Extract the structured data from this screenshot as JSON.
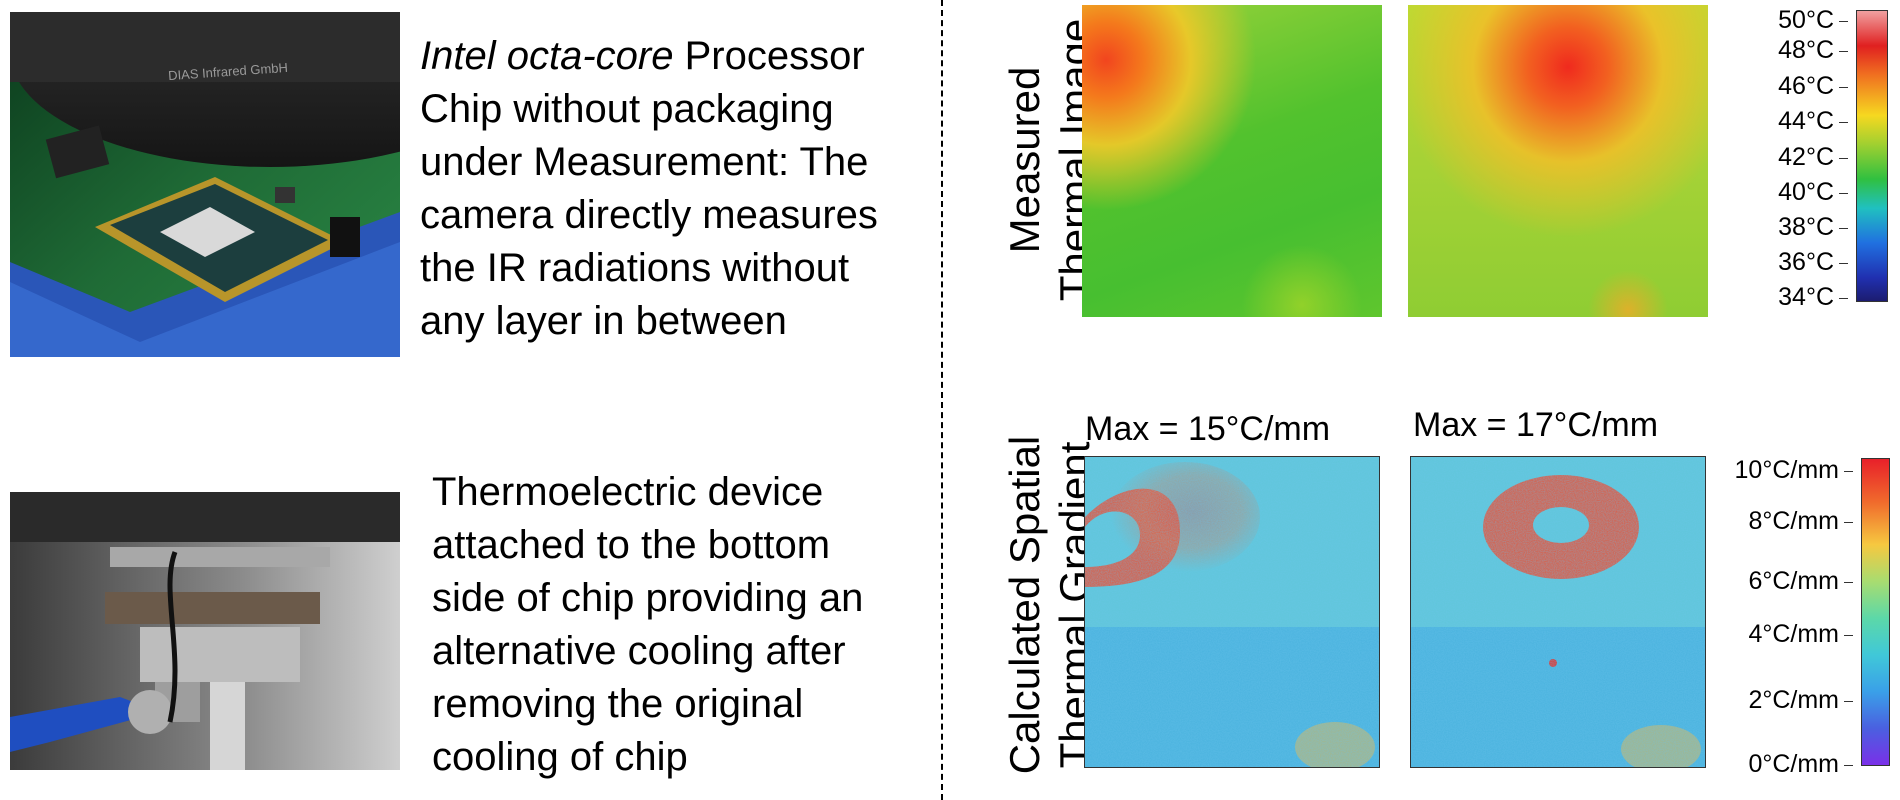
{
  "top_caption": {
    "italic_part": "Intel octa-core",
    "line1_rest": " Processor",
    "lines": [
      "Chip without packaging",
      "under Measurement: The",
      "camera directly measures",
      "the IR radiations without",
      "any layer in between"
    ]
  },
  "bottom_caption": {
    "lines": [
      "Thermoelectric device",
      "attached to the  bottom",
      "side of chip providing an",
      "alternative cooling after",
      "removing  the original",
      "cooling of chip"
    ]
  },
  "photo_top": {
    "lettering": "DIAS Infrared GmbH"
  },
  "row_labels": {
    "thermal": [
      "Measured",
      "Thermal Image"
    ],
    "gradient": [
      "Calculated Spatial",
      "Thermal Gradient"
    ]
  },
  "gradient_maps": [
    {
      "max_label": "Max = 15°C/mm"
    },
    {
      "max_label": "Max = 17°C/mm"
    }
  ],
  "temp_scale": [
    "50°C",
    "48°C",
    "46°C",
    "44°C",
    "42°C",
    "40°C",
    "38°C",
    "36°C",
    "34°C"
  ],
  "gradient_scale": [
    "10°C/mm",
    "8°C/mm",
    "6°C/mm",
    "4°C/mm",
    "2°C/mm",
    "0°C/mm"
  ]
}
